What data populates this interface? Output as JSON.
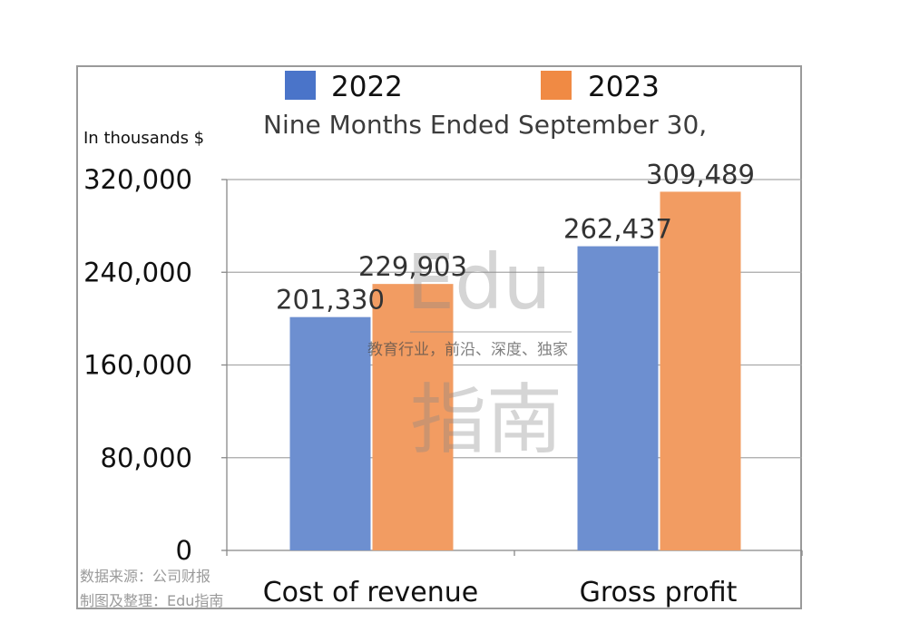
{
  "chart_data": {
    "type": "bar",
    "title": "Nine Months Ended September 30,",
    "unit_label": "In thousands $",
    "categories": [
      "Cost of revenue",
      "Gross profit"
    ],
    "series": [
      {
        "name": "2022",
        "color": "#6d8fd0",
        "legend_color": "#4a74c9",
        "values": [
          201330,
          262437
        ],
        "labels": [
          "201,330",
          "262,437"
        ]
      },
      {
        "name": "2023",
        "color": "#f29c62",
        "legend_color": "#f08a44",
        "values": [
          229903,
          309489
        ],
        "labels": [
          "229,903",
          "309,489"
        ]
      }
    ],
    "ylim": [
      0,
      320000
    ],
    "yticks": [
      0,
      80000,
      160000,
      240000,
      320000
    ],
    "ytick_labels": [
      "0",
      "80,000",
      "160,000",
      "240,000",
      "320,000"
    ],
    "grid": true,
    "legend_position": "top"
  },
  "source_note": {
    "line1": "数据来源：公司财报",
    "line2": "制图及整理：Edu指南"
  },
  "watermark": {
    "top": "Edu",
    "middle": "教育行业，前沿、深度、独家",
    "bottom": "指南"
  }
}
